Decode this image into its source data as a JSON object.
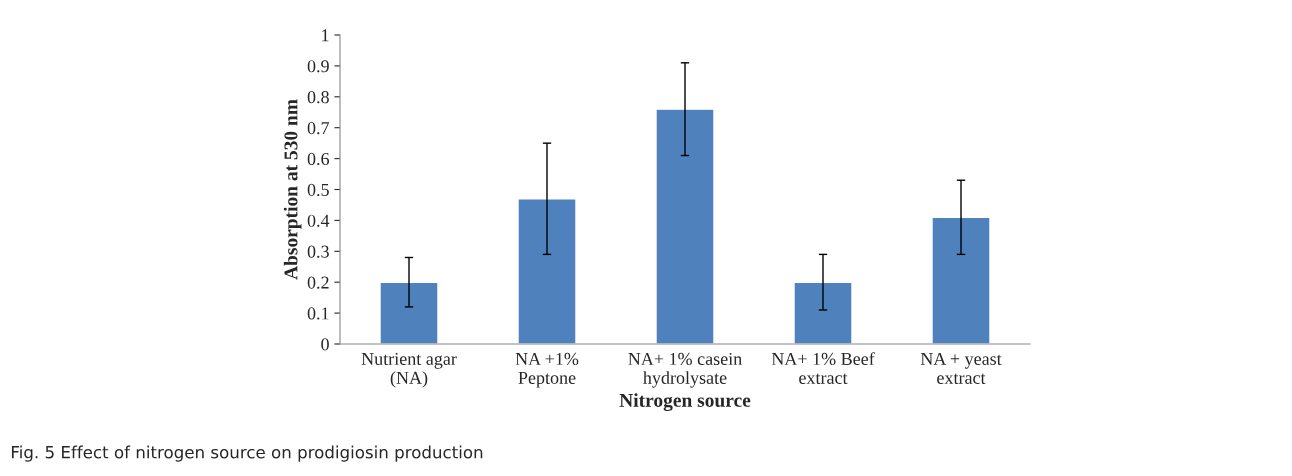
{
  "chart_data": {
    "type": "bar",
    "xlabel": "Nitrogen source",
    "ylabel": "Absorption at 530 nm",
    "categories": [
      "Nutrient agar\n(NA)",
      "NA +1%\nPeptone",
      "NA+ 1% casein\nhydrolysate",
      "NA+ 1% Beef\nextract",
      "NA + yeast\nextract"
    ],
    "values": [
      0.2,
      0.47,
      0.76,
      0.2,
      0.41
    ],
    "errors": [
      0.08,
      0.18,
      0.15,
      0.09,
      0.12
    ],
    "color": "#4f81bd",
    "ylim": [
      0,
      1
    ],
    "yticks": [
      0,
      0.1,
      0.2,
      0.3,
      0.4,
      0.5,
      0.6,
      0.7,
      0.8,
      0.9,
      1
    ],
    "grid": false,
    "legend": false,
    "annotations": [
      "Fig. 5 Effect of nitrogen source on prodigiosin production"
    ]
  }
}
